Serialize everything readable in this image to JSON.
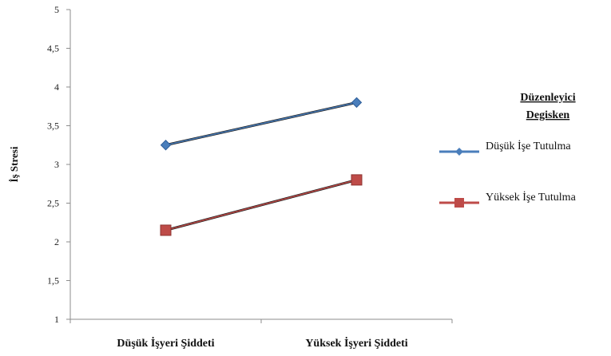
{
  "chart_data": {
    "type": "line",
    "title": "",
    "xlabel": "",
    "ylabel": "İş Stresi",
    "categories": [
      "Düşük İşyeri Şiddeti",
      "Yüksek İşyeri Şiddeti"
    ],
    "ylim": [
      1,
      5
    ],
    "yticks": [
      "1",
      "1,5",
      "2",
      "2,5",
      "3",
      "3,5",
      "4",
      "4,5",
      "5"
    ],
    "grid": false,
    "legend_position": "right",
    "legend_title_lines": [
      "Düzenleyici",
      "Degisken"
    ],
    "series": [
      {
        "name": "Düşük İşe Tutulma",
        "values": [
          3.25,
          3.8
        ],
        "color": "#4a7ebb",
        "marker": "diamond"
      },
      {
        "name": "Yüksek İşe Tutulma",
        "values": [
          2.15,
          2.8
        ],
        "color": "#be4b48",
        "marker": "square"
      }
    ]
  }
}
